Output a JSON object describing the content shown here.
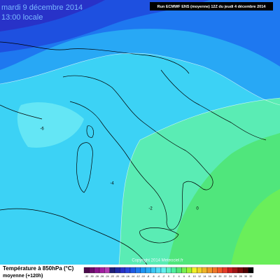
{
  "header": {
    "date": "mardi 9 décembre 2014",
    "time": "13:00 locale",
    "run": "Run ECMWF ENS (moyenne) 12Z du jeudi 4 décembre 2014"
  },
  "copyright": "Copyright 2014 Meteociel.fr",
  "contour_labels": [
    "-6",
    "-4",
    "-2",
    "0"
  ],
  "legend": {
    "title": "Température à 850hPa (°C)",
    "subtitle": "moyenne (+120h)",
    "ticks": [
      -32,
      -30,
      -28,
      -26,
      -24,
      -22,
      -20,
      -18,
      -16,
      -14,
      -12,
      -10,
      -8,
      -6,
      -4,
      -2,
      0,
      2,
      4,
      6,
      8,
      10,
      12,
      14,
      16,
      18,
      20,
      22,
      24,
      26,
      28,
      30,
      32
    ],
    "colors": [
      "#4b0a4b",
      "#6a0a6a",
      "#8c148c",
      "#a01ea0",
      "#b43cb4",
      "#1e1e78",
      "#1e28a0",
      "#2832c8",
      "#2846dc",
      "#1e5ae6",
      "#1e78f0",
      "#1e96f5",
      "#28aaf5",
      "#3cc8f5",
      "#50dcf5",
      "#64f0f0",
      "#5af0c8",
      "#50f0a0",
      "#50e678",
      "#78f050",
      "#a0f032",
      "#f0f028",
      "#f0d228",
      "#f0b428",
      "#f09628",
      "#f07828",
      "#f05a28",
      "#e63c28",
      "#c81e1e",
      "#a01414",
      "#780a0a",
      "#500000",
      "#000000"
    ]
  }
}
